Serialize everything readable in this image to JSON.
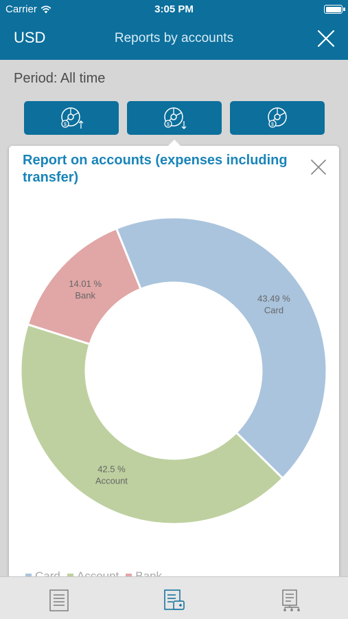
{
  "status": {
    "carrier": "Carrier",
    "time": "3:05 PM"
  },
  "nav": {
    "currency": "USD",
    "title": "Reports by accounts"
  },
  "period": "Period: All time",
  "modal": {
    "title": "Report on accounts (expenses including transfer)"
  },
  "chart_data": {
    "type": "pie",
    "style": "donut",
    "legend_position": "bottom-left",
    "slices": [
      {
        "name": "Card",
        "value": 43.49,
        "label": "43.49 %",
        "color": "#aac4dd"
      },
      {
        "name": "Account",
        "value": 42.5,
        "label": "42.5 %",
        "color": "#bed09f"
      },
      {
        "name": "Bank",
        "value": 14.01,
        "label": "14.01 %",
        "color": "#e1a6a6"
      }
    ]
  },
  "legend": [
    {
      "name": "Card",
      "color": "#aac4dd"
    },
    {
      "name": "Account",
      "color": "#bed09f"
    },
    {
      "name": "Bank",
      "color": "#e1a6a6"
    }
  ],
  "colors": {
    "primary": "#0c6f9c",
    "accent_text": "#1984b8",
    "background": "#d6d6d6"
  },
  "icons": {
    "tabs": [
      "pie-chart-income-icon",
      "pie-chart-expense-icon",
      "pie-chart-balance-icon"
    ],
    "close": "close-icon",
    "tabbar": [
      "document-list-icon",
      "account-report-icon",
      "category-tree-icon"
    ]
  }
}
